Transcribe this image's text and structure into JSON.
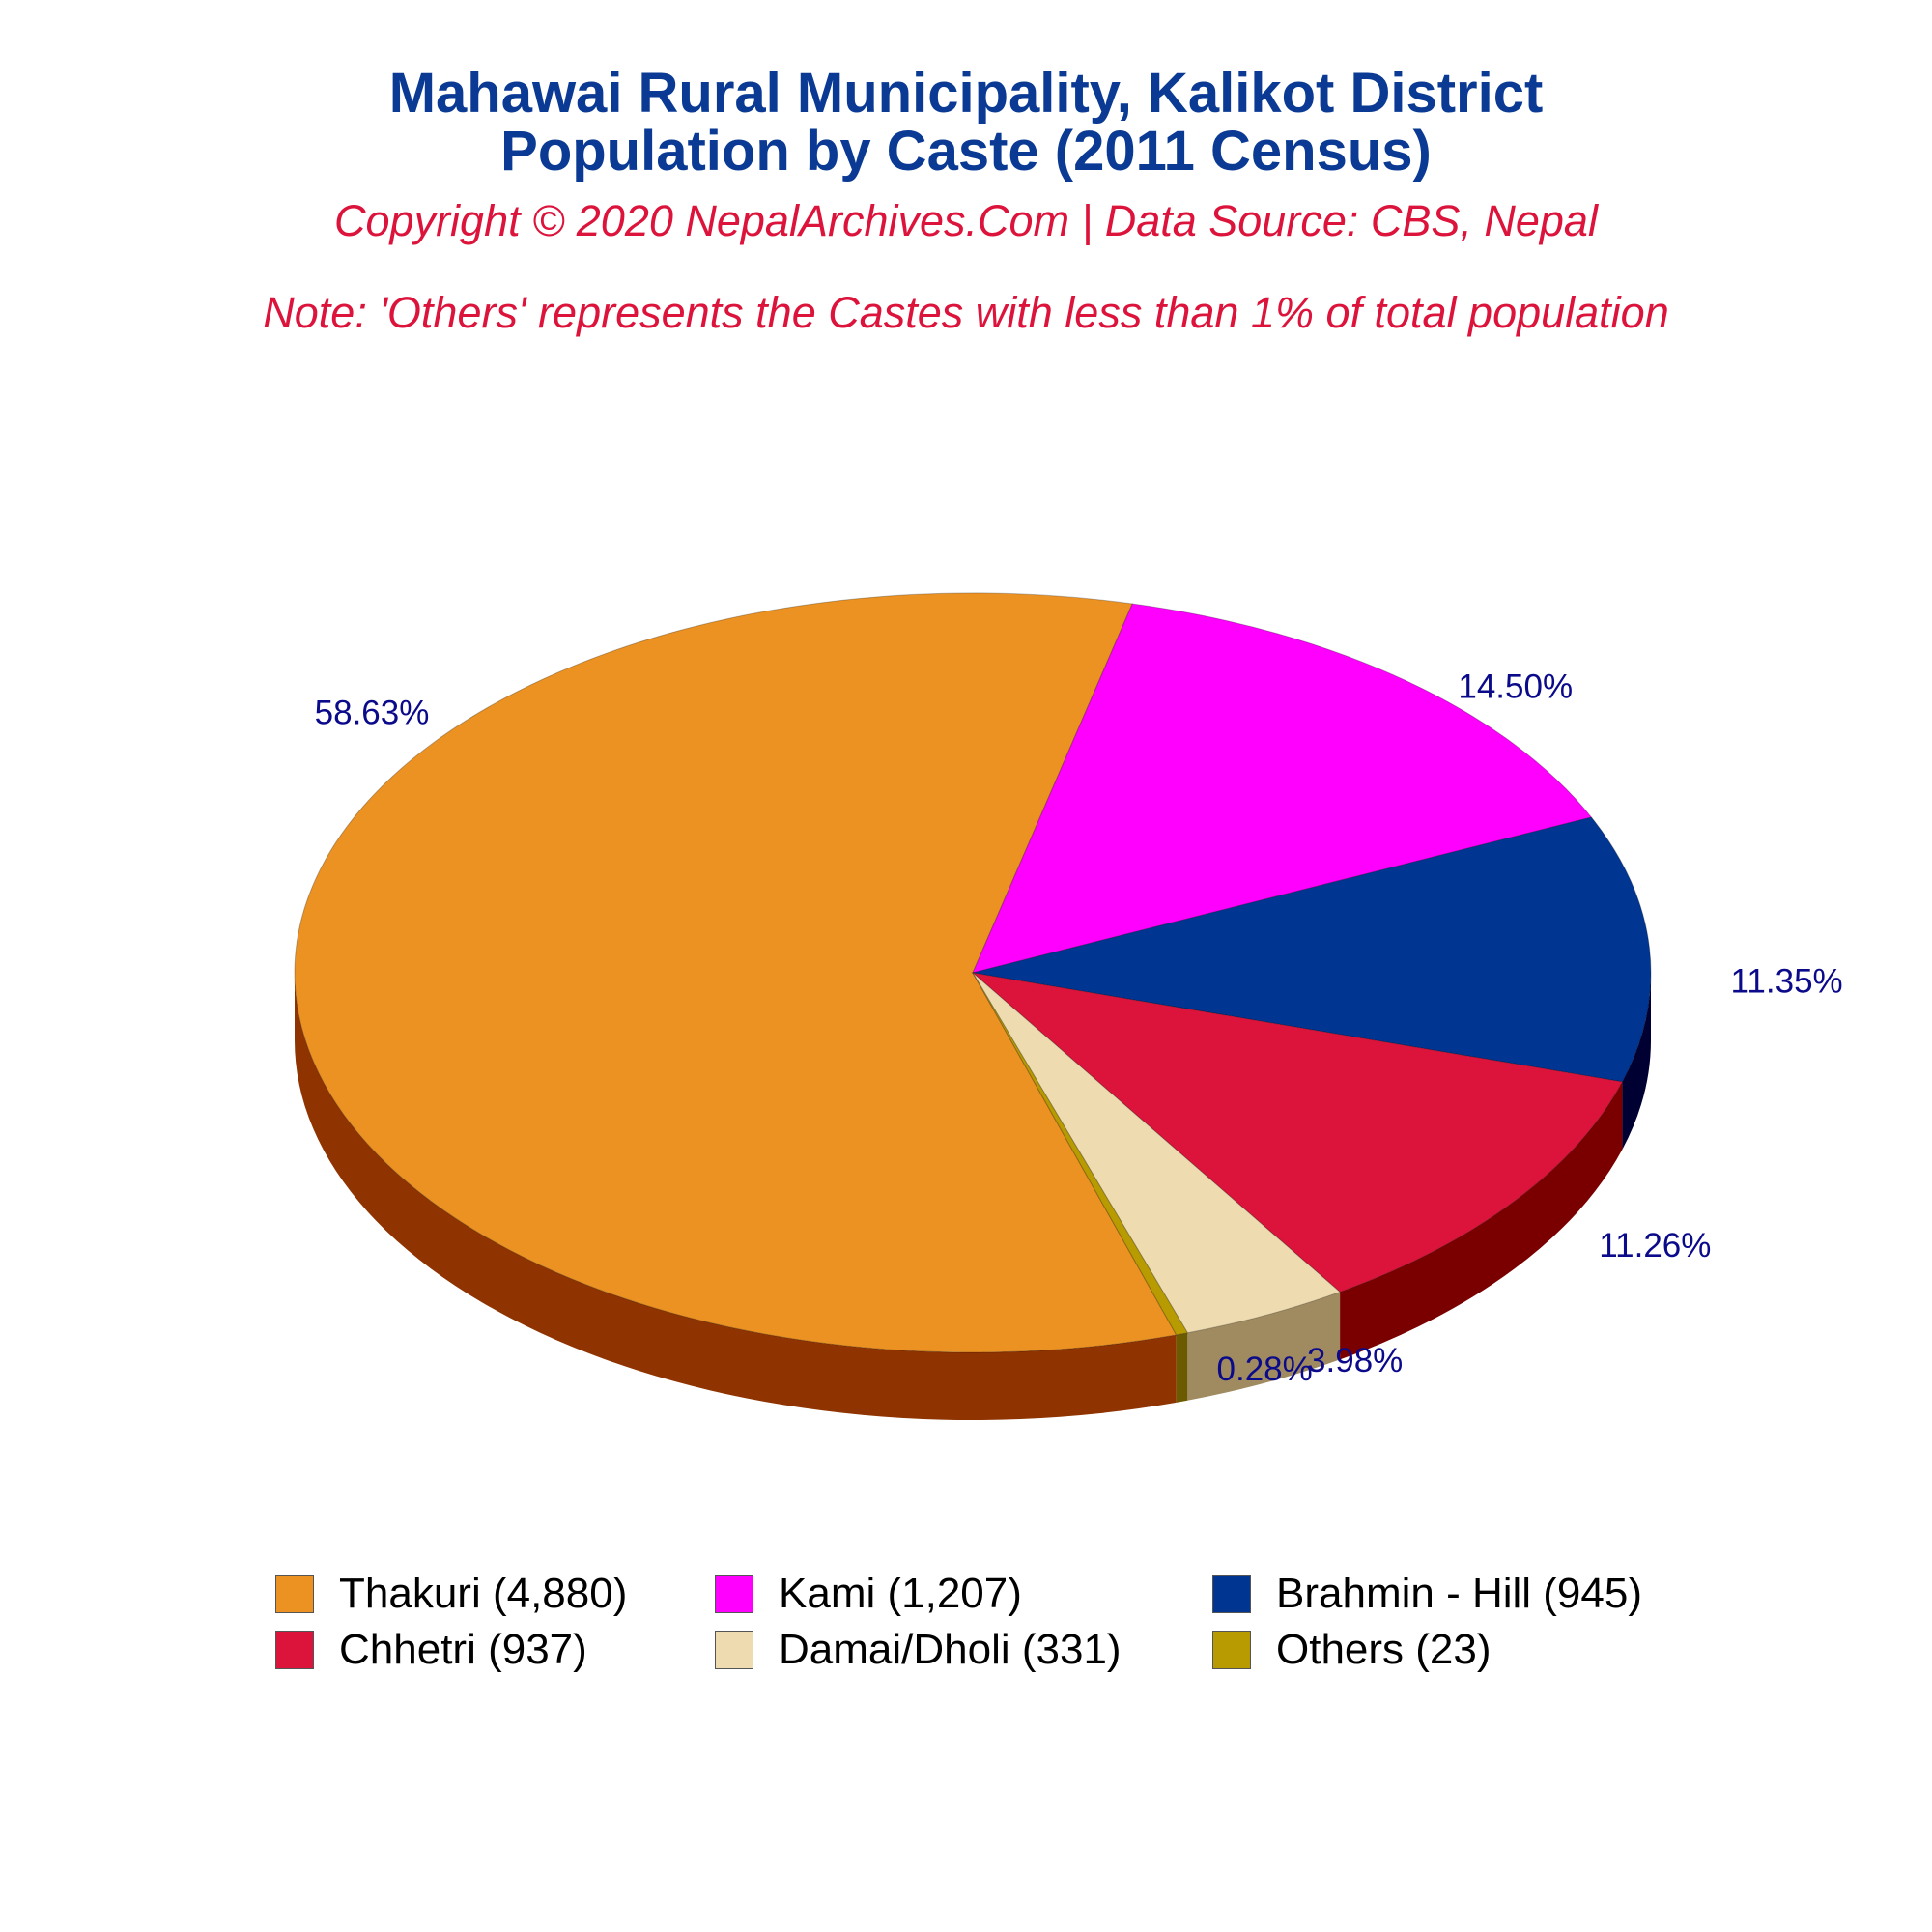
{
  "title_line1": "Mahawai Rural Municipality, Kalikot District",
  "title_line2": "Population by Caste (2011 Census)",
  "copyright": "Copyright © 2020 NepalArchives.Com | Data Source: CBS, Nepal",
  "note": "Note: 'Others' represents the Castes with less than 1% of total population",
  "chart_data": {
    "type": "pie",
    "style": "3d",
    "legend_position": "bottom",
    "slices": [
      {
        "name": "Thakuri",
        "legend_label": "Thakuri (4,880)",
        "value": 4880,
        "percent_label": "58.63%",
        "color": "#eb9222",
        "side_color": "#8f3400"
      },
      {
        "name": "Kami",
        "legend_label": "Kami (1,207)",
        "value": 1207,
        "percent_label": "14.50%",
        "color": "#ff00ff",
        "side_color": "#a600a6"
      },
      {
        "name": "Brahmin - Hill",
        "legend_label": "Brahmin - Hill (945)",
        "value": 945,
        "percent_label": "11.35%",
        "color": "#003592",
        "side_color": "#000033"
      },
      {
        "name": "Chhetri",
        "legend_label": "Chhetri (937)",
        "value": 937,
        "percent_label": "11.26%",
        "color": "#dc143c",
        "side_color": "#7a0000"
      },
      {
        "name": "Damai/Dholi",
        "legend_label": "Damai/Dholi (331)",
        "value": 331,
        "percent_label": "3.98%",
        "color": "#eedbb0",
        "side_color": "#a08a60"
      },
      {
        "name": "Others",
        "legend_label": "Others (23)",
        "value": 23,
        "percent_label": "0.28%",
        "color": "#b89b00",
        "side_color": "#6b5a00"
      }
    ]
  }
}
